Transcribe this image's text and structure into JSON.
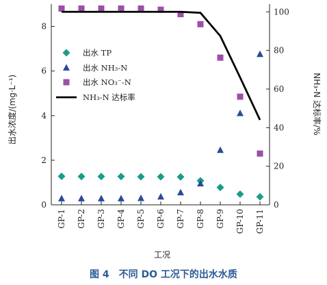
{
  "chart_data": {
    "type": "scatter",
    "categories": [
      "GP-1",
      "GP-2",
      "GP-3",
      "GP-4",
      "GP-5",
      "GP-6",
      "GP-7",
      "GP-8",
      "GP-9",
      "GP-10",
      "GP-11"
    ],
    "xlabel": "工况",
    "ylabel": "出水浓度/(mg·L⁻¹)",
    "y2label": "NH₃-N 达标率/%",
    "ylim": [
      0,
      9
    ],
    "y2lim": [
      0,
      104
    ],
    "yticks": [
      "0",
      "2",
      "4",
      "6",
      "8"
    ],
    "y2ticks": [
      "0",
      "20",
      "40",
      "60",
      "80",
      "100"
    ],
    "series": [
      {
        "name": "出水 TP",
        "axis": "left",
        "marker": "diamond",
        "color": "#1a9c8a",
        "values": [
          1.28,
          1.27,
          1.27,
          1.27,
          1.26,
          1.26,
          1.25,
          1.08,
          0.78,
          0.48,
          0.36
        ]
      },
      {
        "name": "出水 NH₃-N",
        "axis": "left",
        "marker": "triangle",
        "color": "#2b4a9a",
        "values": [
          0.28,
          0.28,
          0.28,
          0.28,
          0.29,
          0.36,
          0.55,
          0.95,
          2.45,
          4.1,
          6.75
        ]
      },
      {
        "name": "出水 NO₃⁻-N",
        "axis": "left",
        "marker": "square",
        "color": "#9b4fa6",
        "values": [
          8.8,
          8.8,
          8.8,
          8.8,
          8.8,
          8.75,
          8.55,
          8.1,
          6.6,
          4.85,
          2.3
        ]
      },
      {
        "name": "NH₃-N 达标率",
        "axis": "right",
        "marker": "line",
        "color": "#000000",
        "values": [
          100,
          100,
          100,
          100,
          100,
          100,
          100,
          99.5,
          87.5,
          66,
          44
        ]
      }
    ],
    "legend_position": "left"
  },
  "caption": "图 4　不同 DO 工况下的出水水质"
}
